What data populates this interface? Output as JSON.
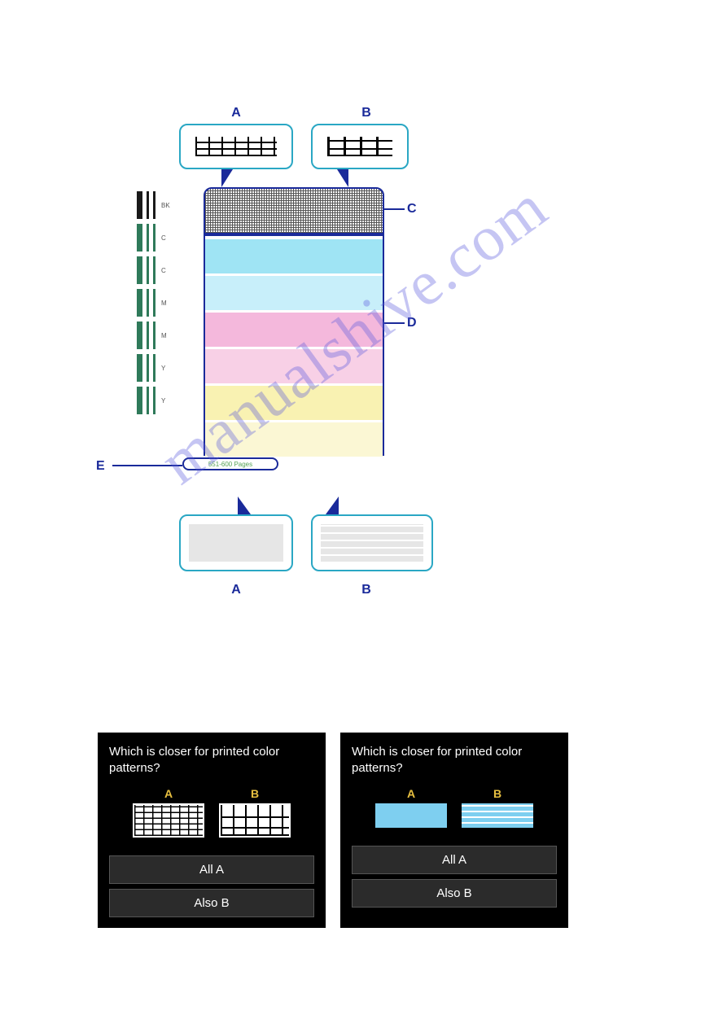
{
  "diagram": {
    "labels": {
      "top_a": "A",
      "top_b": "B",
      "bot_a": "A",
      "bot_b": "B",
      "c": "C",
      "d": "D",
      "e": "E"
    },
    "label_color": "#1a2a9a",
    "label_fontsize": 16,
    "callout_border_color": "#2aa7c4",
    "panel_border_color": "#1a2a9a",
    "grid_line_color": "#555555",
    "pill_text": "551-600 Pages",
    "pill_text_color": "#56a356",
    "ink_columns": [
      {
        "label": "BK",
        "color": "#1a1a1a"
      },
      {
        "label": "C",
        "color": "#2f7a5a"
      },
      {
        "label": "C",
        "color": "#2f7a5a"
      },
      {
        "label": "M",
        "color": "#2f7a5a"
      },
      {
        "label": "M",
        "color": "#2f7a5a"
      },
      {
        "label": "Y",
        "color": "#2f7a5a"
      },
      {
        "label": "Y",
        "color": "#2f7a5a"
      }
    ],
    "color_bands": [
      {
        "color": "#9fe4f4"
      },
      {
        "color": "#c8effa"
      },
      {
        "color": "#f4b8dc"
      },
      {
        "color": "#f8d0e6"
      },
      {
        "color": "#f9f2b2"
      },
      {
        "color": "#fbf7d4"
      }
    ],
    "bottom_fill_color": "#e6e6e6"
  },
  "watermark": {
    "text": "manualshive.com",
    "color": "rgba(90,90,220,0.35)",
    "fontsize": 78,
    "rotation_deg": -36
  },
  "screens": {
    "question": "Which is closer for printed color patterns?",
    "opt_a_label": "A",
    "opt_b_label": "B",
    "btn_all_a": "All A",
    "btn_also_b": "Also B",
    "background_color": "#000000",
    "button_bg": "#2b2b2b",
    "text_color": "#ffffff",
    "opt_label_color": "#e8c040",
    "opt_solid_color": "#7ecff0",
    "fontsize": 15
  }
}
